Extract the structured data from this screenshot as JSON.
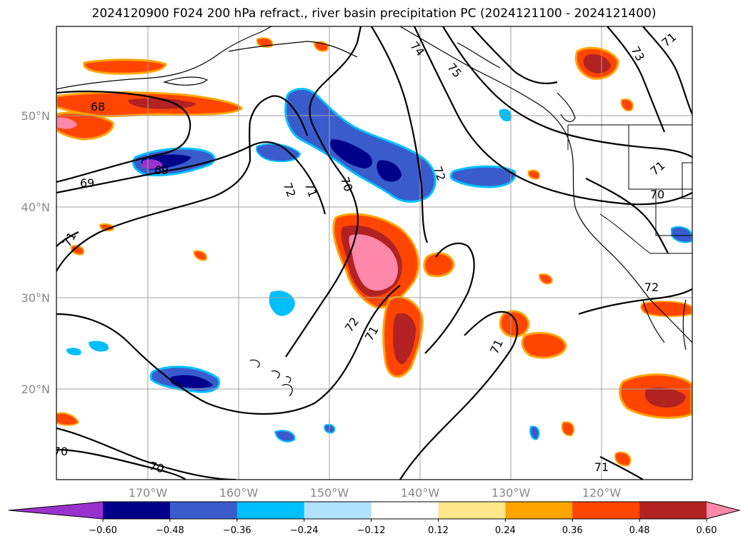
{
  "title": "2024120900 F024 200 hPa refract., river basin precipitation PC (2024121100 - 2024121400)",
  "lat_labels": [
    "50°N",
    "40°N",
    "30°N",
    "20°N"
  ],
  "lon_labels": [
    "170°W",
    "160°W",
    "150°W",
    "140°W",
    "130°W",
    "120°W"
  ],
  "colorbar": {
    "colors": [
      "#9932cc",
      "#00008b",
      "#3a5bcc",
      "#00bfff",
      "#b0e2ff",
      "#ffffff",
      "#ffe88a",
      "#ffa500",
      "#ff4500",
      "#b22222",
      "#ff88aa"
    ],
    "tick_labels": [
      "−0.60",
      "−0.48",
      "−0.36",
      "−0.24",
      "−0.12",
      "0.12",
      "0.24",
      "0.36",
      "0.48",
      "0.60"
    ]
  },
  "contour_labels": [
    "68",
    "69",
    "69",
    "70",
    "70",
    "70",
    "70",
    "71",
    "71",
    "71",
    "71",
    "71",
    "71",
    "71",
    "72",
    "72",
    "72",
    "72",
    "73",
    "74",
    "75",
    "71"
  ]
}
